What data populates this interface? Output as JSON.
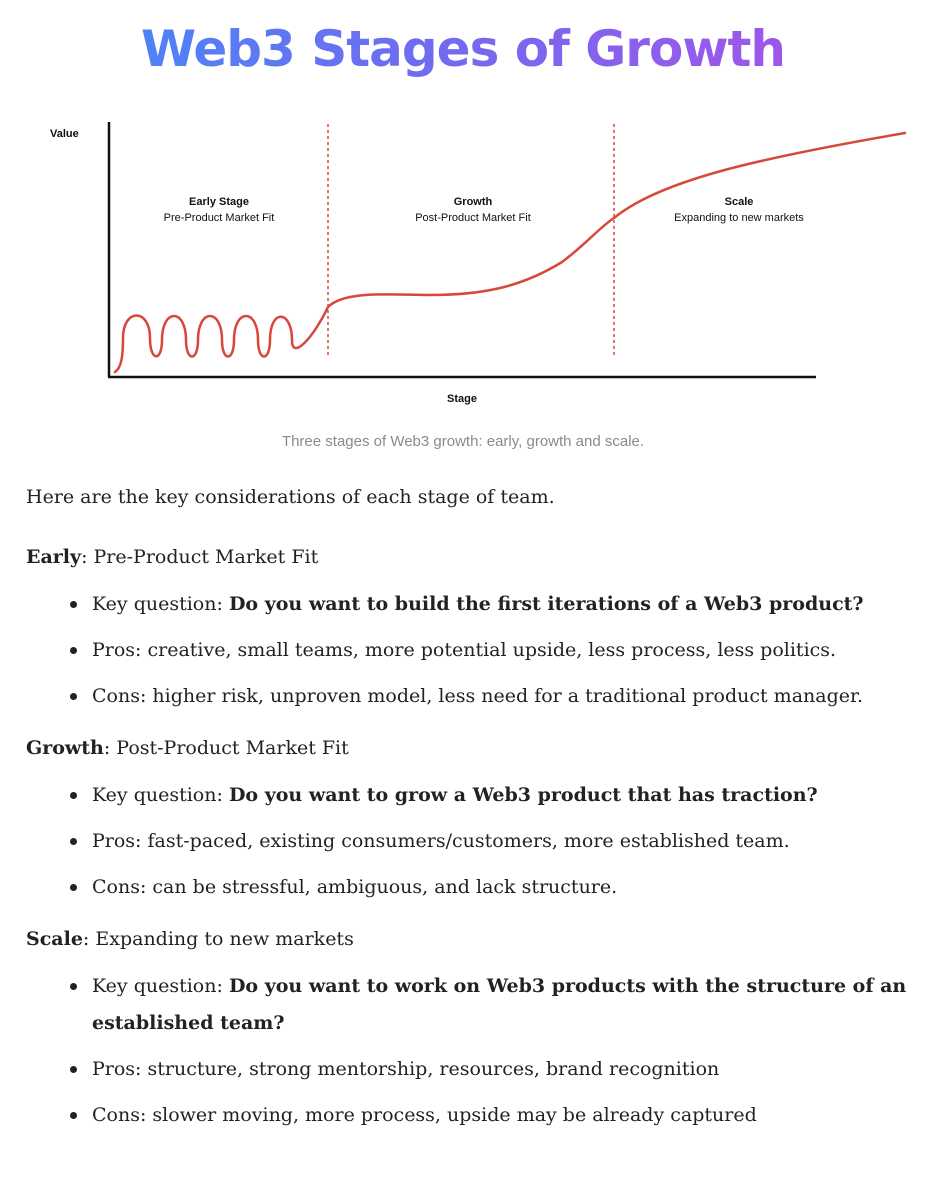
{
  "title": "Web3 Stages of Growth",
  "chart_data": {
    "type": "line",
    "title": "",
    "xlabel": "Stage",
    "ylabel": "Value",
    "stages": [
      {
        "name": "Early Stage",
        "subtitle": "Pre-Product Market Fit"
      },
      {
        "name": "Growth",
        "subtitle": "Post-Product Market Fit"
      },
      {
        "name": "Scale",
        "subtitle": "Expanding to new markets"
      }
    ],
    "line_color": "#d9473a",
    "divider_color": "#d9473a",
    "grid": false
  },
  "caption": "Three stages of Web3 growth: early, growth and scale.",
  "intro": "Here are the key considerations of each stage of team.",
  "sections": [
    {
      "label": "Early",
      "subtitle": ": Pre-Product Market Fit",
      "key_prefix": "Key question: ",
      "key_question": "Do you want to build the first iterations of a Web3 product?",
      "pros": "Pros: creative, small teams, more potential upside, less process, less politics.",
      "cons": "Cons: higher risk, unproven model, less need for a traditional product manager."
    },
    {
      "label": "Growth",
      "subtitle": ": Post-Product Market Fit",
      "key_prefix": "Key question: ",
      "key_question": "Do you want to grow a Web3 product that has traction?",
      "pros": "Pros: fast-paced, existing consumers/customers, more established team.",
      "cons": "Cons: can be stressful, ambiguous, and lack structure."
    },
    {
      "label": "Scale",
      "subtitle": ": Expanding to new markets",
      "key_prefix": "Key question: ",
      "key_question": "Do you want to work on Web3 products with the structure of an established team?",
      "pros": "Pros: structure, strong mentorship, resources, brand recognition",
      "cons": "Cons: slower moving, more process, upside may be already captured"
    }
  ]
}
